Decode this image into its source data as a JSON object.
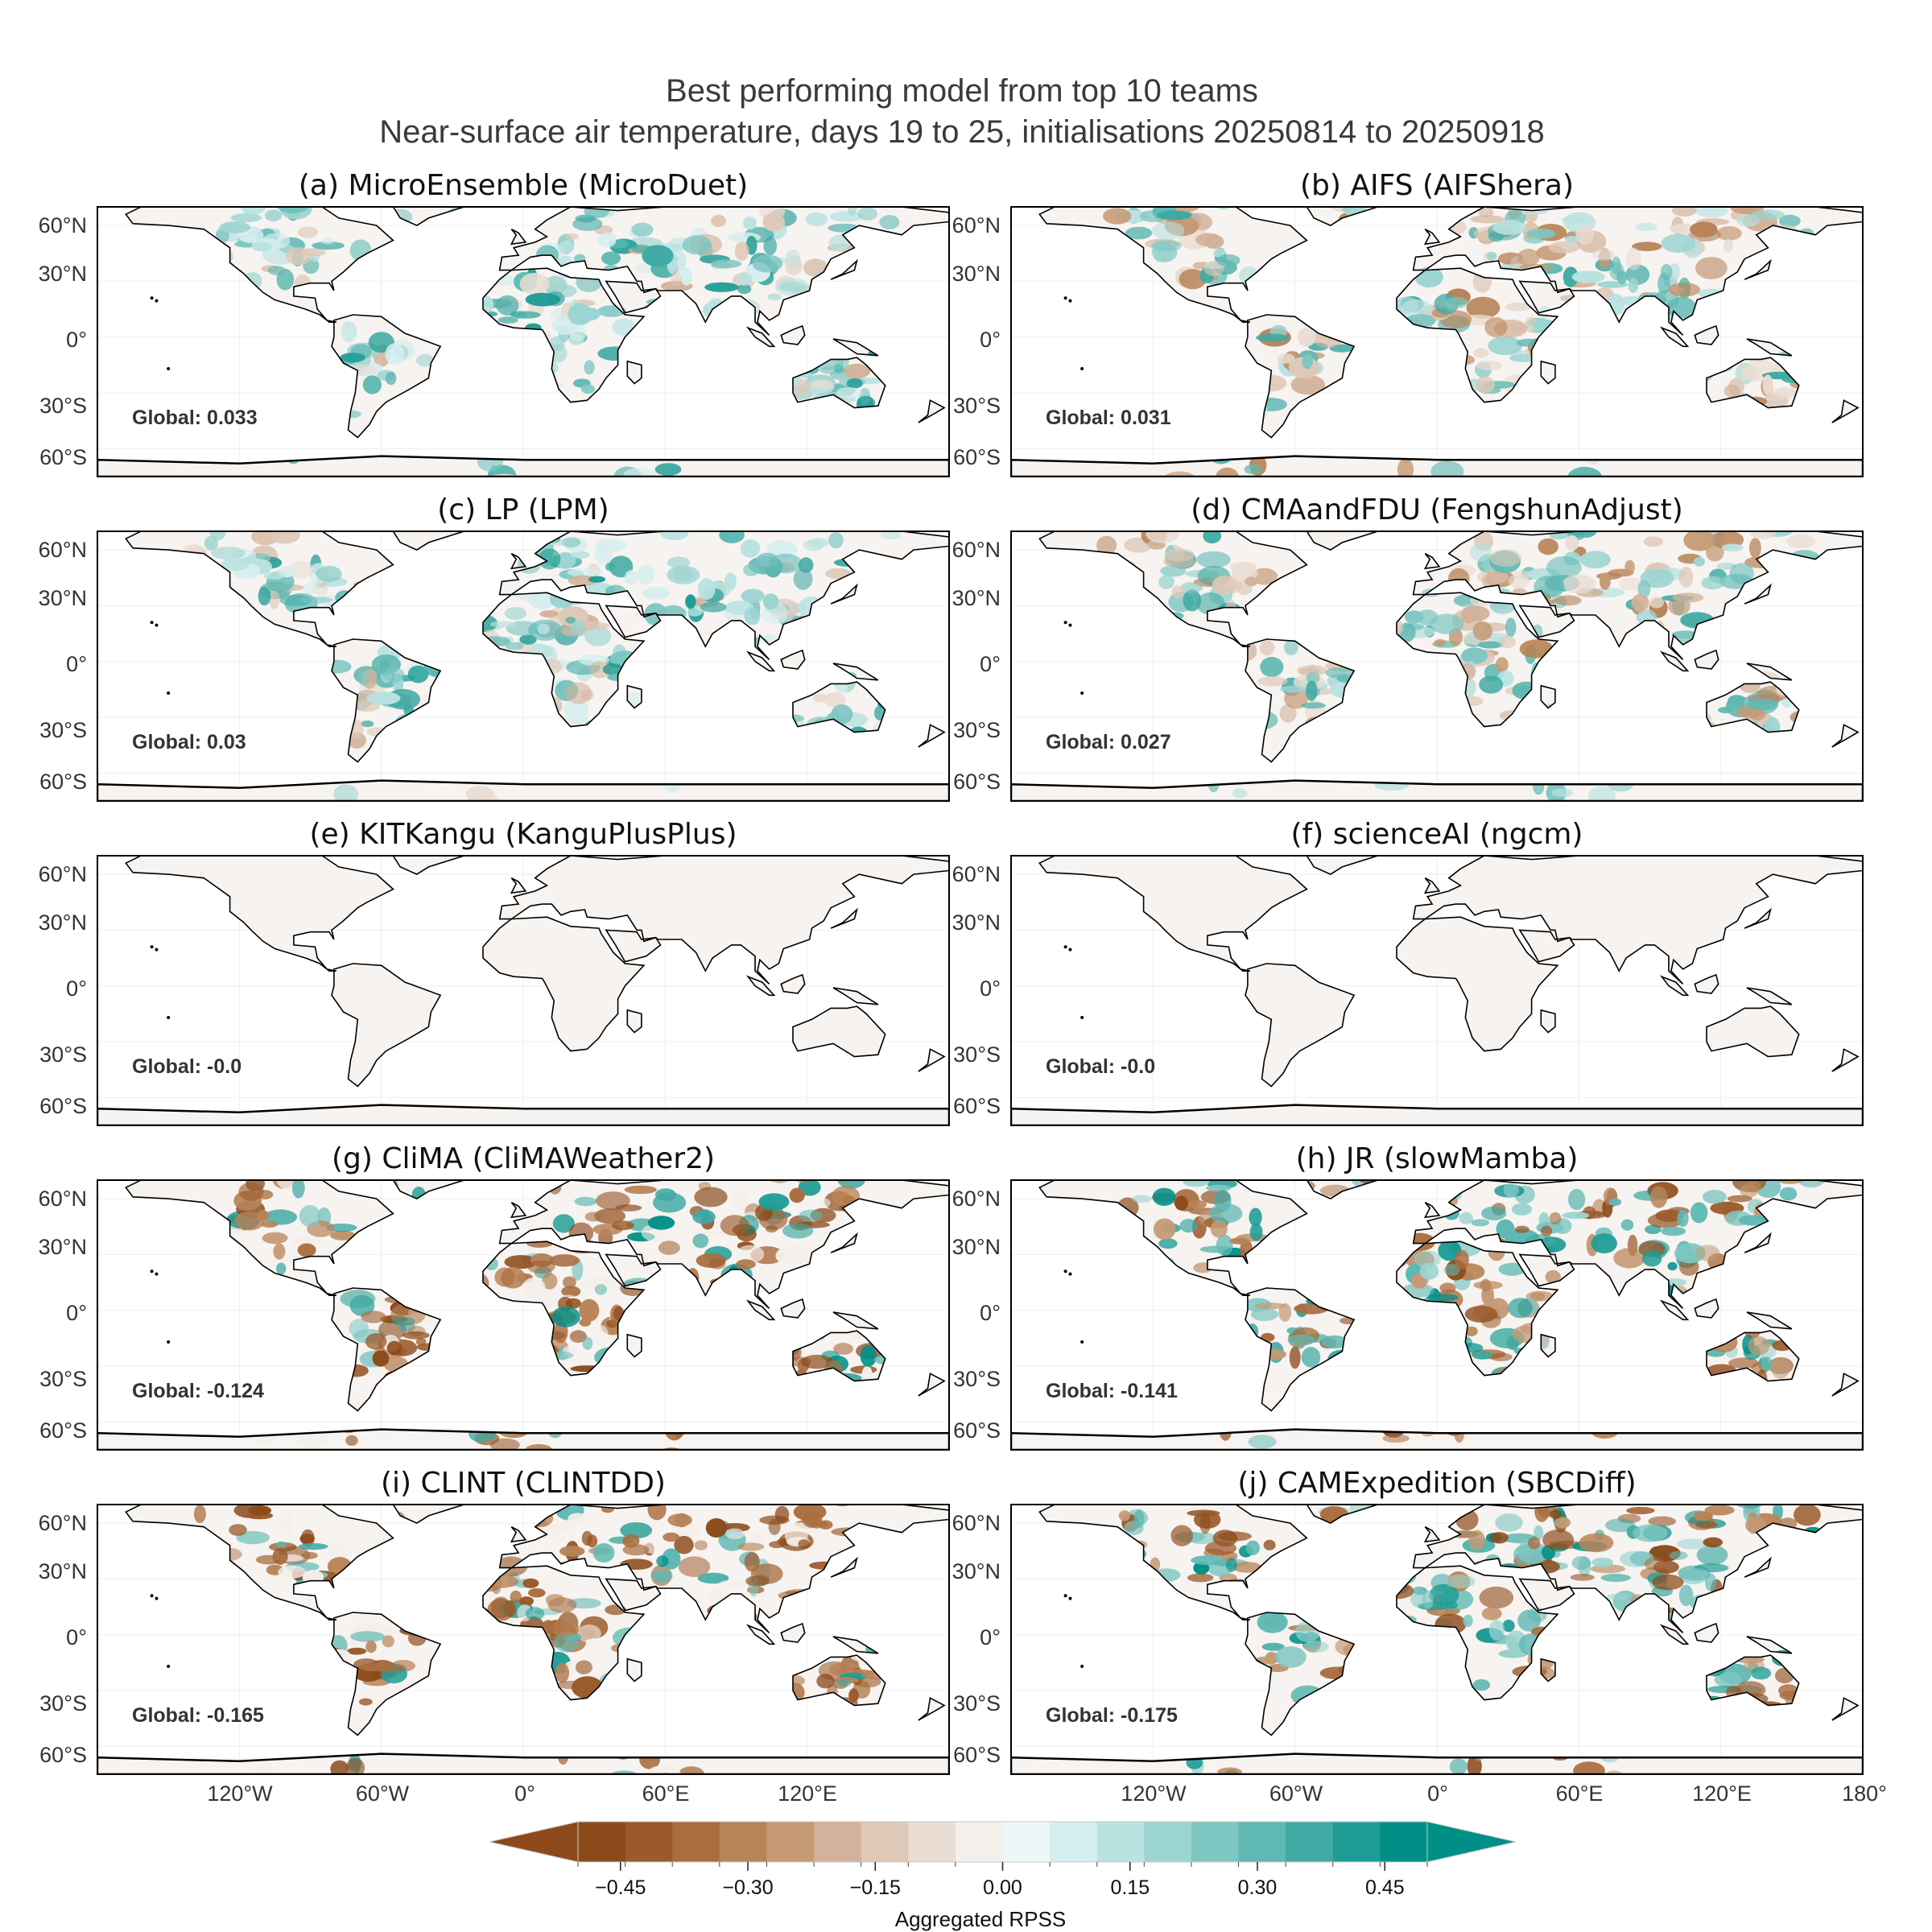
{
  "figure": {
    "title_line1": "Best performing model from top 10 teams",
    "title_line2": "Near-surface air temperature, days 19 to 25, initialisations 20250814 to 20250918"
  },
  "latitude_ticks": [
    "60°N",
    "30°N",
    "0°",
    "30°S",
    "60°S"
  ],
  "longitude_ticks_left": [
    "120°W",
    "60°W",
    "0°",
    "60°E",
    "120°E"
  ],
  "longitude_ticks_right": [
    "120°W",
    "60°W",
    "0°",
    "60°E",
    "120°E",
    "180°"
  ],
  "panels": [
    {
      "title": "(a) MicroEnsemble (MicroDuet)",
      "global": "Global: 0.033",
      "global_value": 0.033,
      "style": "mild-teal"
    },
    {
      "title": "(b) AIFS (AIFShera)",
      "global": "Global: 0.031",
      "global_value": 0.031,
      "style": "mild-mixed"
    },
    {
      "title": "(c) LP (LPM)",
      "global": "Global: 0.03",
      "global_value": 0.03,
      "style": "mild-teal"
    },
    {
      "title": "(d) CMAandFDU (FengshunAdjust)",
      "global": "Global: 0.027",
      "global_value": 0.027,
      "style": "mild-mixed"
    },
    {
      "title": "(e) KITKangu (KanguPlusPlus)",
      "global": "Global: -0.0",
      "global_value": 0.0,
      "style": "neutral"
    },
    {
      "title": "(f) scienceAI (ngcm)",
      "global": "Global: -0.0",
      "global_value": 0.0,
      "style": "neutral"
    },
    {
      "title": "(g) CliMA (CliMAWeather2)",
      "global": "Global: -0.124",
      "global_value": -0.124,
      "style": "strong-brown"
    },
    {
      "title": "(h) JR (slowMamba)",
      "global": "Global: -0.141",
      "global_value": -0.141,
      "style": "strong-mixed"
    },
    {
      "title": "(i) CLINT (CLINTDD)",
      "global": "Global: -0.165",
      "global_value": -0.165,
      "style": "strong-brown"
    },
    {
      "title": "(j) CAMExpedition (SBCDiff)",
      "global": "Global: -0.175",
      "global_value": -0.175,
      "style": "strong-mixed"
    }
  ],
  "colorbar": {
    "label": "Aggregated RPSS",
    "tick_labels": [
      "−0.45",
      "−0.30",
      "−0.15",
      "0.00",
      "0.15",
      "0.30",
      "0.45"
    ],
    "tick_values": [
      -0.45,
      -0.3,
      -0.15,
      0.0,
      0.15,
      0.3,
      0.45
    ],
    "min": -0.5,
    "max": 0.5,
    "extend": "both",
    "colors": [
      "#8c4a1a",
      "#9a5a2c",
      "#a96d40",
      "#b88357",
      "#c59a75",
      "#d2b29a",
      "#dec8b8",
      "#e9dcd2",
      "#f4efea",
      "#eef7f7",
      "#d6eeee",
      "#b9e2e0",
      "#9cd4d1",
      "#7ec6c2",
      "#5fb8b3",
      "#40a9a3",
      "#1f9c95",
      "#008f87"
    ]
  },
  "colors": {
    "brown_strong": "#8c4a1a",
    "teal_strong": "#008f87",
    "neutral_land": "#f6f3f0"
  }
}
